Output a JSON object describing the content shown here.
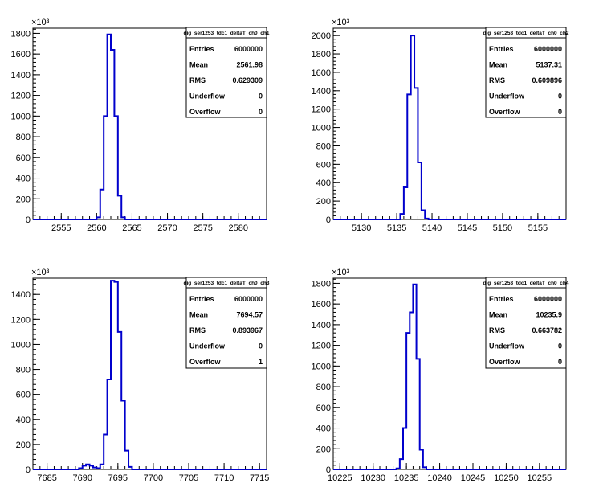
{
  "chart_data": [
    {
      "type": "histogram",
      "title": "dig_ser1253_tdc1_deltaT_ch0_ch1",
      "y_exponent_label": "×10³",
      "xlim": [
        2551,
        2584
      ],
      "ylim": [
        0,
        1850
      ],
      "x_ticks": [
        2555,
        2560,
        2565,
        2570,
        2575,
        2580
      ],
      "y_ticks": [
        0,
        200,
        400,
        600,
        800,
        1000,
        1200,
        1400,
        1600,
        1800
      ],
      "bin_width": 0.5,
      "bins": [
        {
          "x": 2560.0,
          "y": 20
        },
        {
          "x": 2560.5,
          "y": 290
        },
        {
          "x": 2561.0,
          "y": 1000
        },
        {
          "x": 2561.5,
          "y": 1790
        },
        {
          "x": 2562.0,
          "y": 1640
        },
        {
          "x": 2562.5,
          "y": 1000
        },
        {
          "x": 2563.0,
          "y": 230
        },
        {
          "x": 2563.5,
          "y": 20
        }
      ],
      "stats": [
        {
          "label": "Entries",
          "value": "6000000"
        },
        {
          "label": "Mean",
          "value": "2561.98"
        },
        {
          "label": "RMS",
          "value": "0.629309"
        },
        {
          "label": "Underflow",
          "value": "0"
        },
        {
          "label": "Overflow",
          "value": "0"
        }
      ]
    },
    {
      "type": "histogram",
      "title": "dig_ser1253_tdc1_deltaT_ch0_ch2",
      "y_exponent_label": "×10³",
      "xlim": [
        5126,
        5159
      ],
      "ylim": [
        0,
        2080
      ],
      "x_ticks": [
        5130,
        5135,
        5140,
        5145,
        5150,
        5155
      ],
      "y_ticks": [
        0,
        200,
        400,
        600,
        800,
        1000,
        1200,
        1400,
        1600,
        1800,
        2000
      ],
      "bin_width": 0.5,
      "bins": [
        {
          "x": 5135.5,
          "y": 60
        },
        {
          "x": 5136.0,
          "y": 350
        },
        {
          "x": 5136.5,
          "y": 1360
        },
        {
          "x": 5137.0,
          "y": 2000
        },
        {
          "x": 5137.5,
          "y": 1430
        },
        {
          "x": 5138.0,
          "y": 620
        },
        {
          "x": 5138.5,
          "y": 100
        },
        {
          "x": 5139.0,
          "y": 10
        }
      ],
      "stats": [
        {
          "label": "Entries",
          "value": "6000000"
        },
        {
          "label": "Mean",
          "value": "5137.31"
        },
        {
          "label": "RMS",
          "value": "0.609896"
        },
        {
          "label": "Underflow",
          "value": "0"
        },
        {
          "label": "Overflow",
          "value": "0"
        }
      ]
    },
    {
      "type": "histogram",
      "title": "dig_ser1253_tdc1_deltaT_ch0_ch3",
      "y_exponent_label": "×10³",
      "xlim": [
        7683,
        7716
      ],
      "ylim": [
        0,
        1530
      ],
      "x_ticks": [
        7685,
        7690,
        7695,
        7700,
        7705,
        7710,
        7715
      ],
      "y_ticks": [
        0,
        200,
        400,
        600,
        800,
        1000,
        1200,
        1400
      ],
      "bin_width": 0.5,
      "bins": [
        {
          "x": 7689.5,
          "y": 10
        },
        {
          "x": 7690.0,
          "y": 30
        },
        {
          "x": 7690.5,
          "y": 40
        },
        {
          "x": 7691.0,
          "y": 30
        },
        {
          "x": 7691.5,
          "y": 15
        },
        {
          "x": 7692.0,
          "y": 10
        },
        {
          "x": 7692.5,
          "y": 40
        },
        {
          "x": 7693.0,
          "y": 280
        },
        {
          "x": 7693.5,
          "y": 720
        },
        {
          "x": 7694.0,
          "y": 1510
        },
        {
          "x": 7694.5,
          "y": 1500
        },
        {
          "x": 7695.0,
          "y": 1100
        },
        {
          "x": 7695.5,
          "y": 550
        },
        {
          "x": 7696.0,
          "y": 150
        },
        {
          "x": 7696.5,
          "y": 20
        }
      ],
      "stats": [
        {
          "label": "Entries",
          "value": "6000000"
        },
        {
          "label": "Mean",
          "value": "7694.57"
        },
        {
          "label": "RMS",
          "value": "0.893967"
        },
        {
          "label": "Underflow",
          "value": "0"
        },
        {
          "label": "Overflow",
          "value": "1"
        }
      ]
    },
    {
      "type": "histogram",
      "title": "dig_ser1253_tdc1_deltaT_ch0_ch4",
      "y_exponent_label": "×10³",
      "xlim": [
        10224,
        10259
      ],
      "ylim": [
        0,
        1850
      ],
      "x_ticks": [
        10225,
        10230,
        10235,
        10240,
        10245,
        10250,
        10255
      ],
      "y_ticks": [
        0,
        200,
        400,
        600,
        800,
        1000,
        1200,
        1400,
        1600,
        1800
      ],
      "bin_width": 0.5,
      "bins": [
        {
          "x": 10233.5,
          "y": 10
        },
        {
          "x": 10234.0,
          "y": 100
        },
        {
          "x": 10234.5,
          "y": 400
        },
        {
          "x": 10235.0,
          "y": 1320
        },
        {
          "x": 10235.5,
          "y": 1520
        },
        {
          "x": 10236.0,
          "y": 1790
        },
        {
          "x": 10236.5,
          "y": 1070
        },
        {
          "x": 10237.0,
          "y": 190
        },
        {
          "x": 10237.5,
          "y": 20
        }
      ],
      "stats": [
        {
          "label": "Entries",
          "value": "6000000"
        },
        {
          "label": "Mean",
          "value": "10235.9"
        },
        {
          "label": "RMS",
          "value": "0.663782"
        },
        {
          "label": "Underflow",
          "value": "0"
        },
        {
          "label": "Overflow",
          "value": "0"
        }
      ]
    }
  ],
  "colors": {
    "line": "#0000cc",
    "axis": "#000000",
    "background": "#ffffff"
  }
}
